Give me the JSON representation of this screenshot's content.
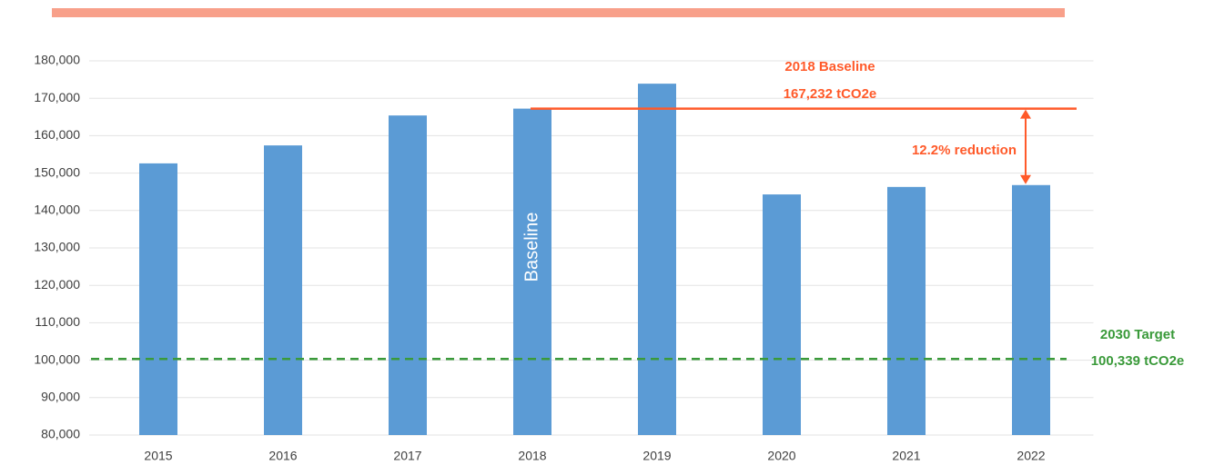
{
  "chart_data": {
    "type": "bar",
    "categories": [
      "2015",
      "2016",
      "2017",
      "2018",
      "2019",
      "2020",
      "2021",
      "2022"
    ],
    "values": [
      152600,
      157400,
      165400,
      167232,
      173900,
      144300,
      146300,
      146800
    ],
    "color": "#5b9bd5",
    "ylim": [
      80000,
      180000
    ],
    "yticks": [
      {
        "value": 80000,
        "label": "80,000"
      },
      {
        "value": 90000,
        "label": "90,000"
      },
      {
        "value": 100000,
        "label": "100,000"
      },
      {
        "value": 110000,
        "label": "110,000"
      },
      {
        "value": 120000,
        "label": "120,000"
      },
      {
        "value": 130000,
        "label": "130,000"
      },
      {
        "value": 140000,
        "label": "140,000"
      },
      {
        "value": 150000,
        "label": "150,000"
      },
      {
        "value": 160000,
        "label": "160,000"
      },
      {
        "value": 170000,
        "label": "170,000"
      },
      {
        "value": 180000,
        "label": "180,000"
      }
    ],
    "grid": true,
    "bar_label": "Baseline",
    "baseline": {
      "value": 167232,
      "title": "2018 Baseline",
      "label": "167,232 tCO2e",
      "color": "#ff5a2a"
    },
    "reduction_label": "12.2% reduction",
    "target": {
      "value": 100339,
      "title": "2030 Target",
      "label": "100,339 tCO2e",
      "color": "#3a9a3a"
    }
  }
}
